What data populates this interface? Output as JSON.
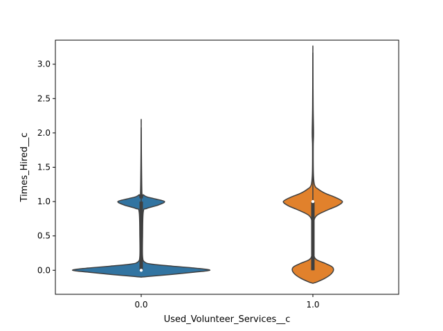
{
  "chart_data": {
    "type": "violin",
    "xlabel": "Used_Volunteer_Services__c",
    "ylabel": "Times_Hired__c",
    "ylim": [
      -0.35,
      3.35
    ],
    "yticks": [
      0.0,
      0.5,
      1.0,
      1.5,
      2.0,
      2.5,
      3.0
    ],
    "ytick_labels": [
      "0.0",
      "0.5",
      "1.0",
      "1.5",
      "2.0",
      "2.5",
      "3.0"
    ],
    "categories": [
      "0.0",
      "1.0"
    ],
    "grid": false,
    "series": [
      {
        "category": "0.0",
        "color": "#3274a1",
        "min": 0.0,
        "max": 2.08,
        "median": 0.0,
        "q1": 0.0,
        "q3": 1.0,
        "density_profile": [
          [
            -0.1,
            0.0
          ],
          [
            -0.09,
            0.1
          ],
          [
            -0.06,
            0.45
          ],
          [
            -0.03,
            0.75
          ],
          [
            0.0,
            1.0
          ],
          [
            0.03,
            0.8
          ],
          [
            0.06,
            0.45
          ],
          [
            0.09,
            0.15
          ],
          [
            0.12,
            0.05
          ],
          [
            0.2,
            0.02
          ],
          [
            0.5,
            0.02
          ],
          [
            0.85,
            0.03
          ],
          [
            0.9,
            0.08
          ],
          [
            0.95,
            0.25
          ],
          [
            1.0,
            0.34
          ],
          [
            1.04,
            0.2
          ],
          [
            1.07,
            0.08
          ],
          [
            1.1,
            0.03
          ],
          [
            1.13,
            0.01
          ],
          [
            2.08,
            0.0
          ]
        ]
      },
      {
        "category": "1.0",
        "color": "#e1812c",
        "min": 0.0,
        "max": 3.17,
        "median": 1.0,
        "q1": 0.0,
        "q3": 1.0,
        "density_profile": [
          [
            -0.19,
            0.0
          ],
          [
            -0.17,
            0.06
          ],
          [
            -0.12,
            0.17
          ],
          [
            -0.06,
            0.26
          ],
          [
            0.0,
            0.3
          ],
          [
            0.05,
            0.28
          ],
          [
            0.1,
            0.18
          ],
          [
            0.15,
            0.06
          ],
          [
            0.2,
            0.02
          ],
          [
            0.3,
            0.005
          ],
          [
            0.5,
            0.006
          ],
          [
            0.7,
            0.012
          ],
          [
            0.8,
            0.06
          ],
          [
            0.88,
            0.22
          ],
          [
            0.94,
            0.36
          ],
          [
            1.0,
            0.43
          ],
          [
            1.06,
            0.33
          ],
          [
            1.12,
            0.18
          ],
          [
            1.18,
            0.08
          ],
          [
            1.24,
            0.025
          ],
          [
            1.4,
            0.008
          ],
          [
            1.8,
            0.005
          ],
          [
            2.0,
            0.01
          ],
          [
            2.4,
            0.004
          ],
          [
            3.17,
            0.0
          ]
        ]
      }
    ]
  }
}
